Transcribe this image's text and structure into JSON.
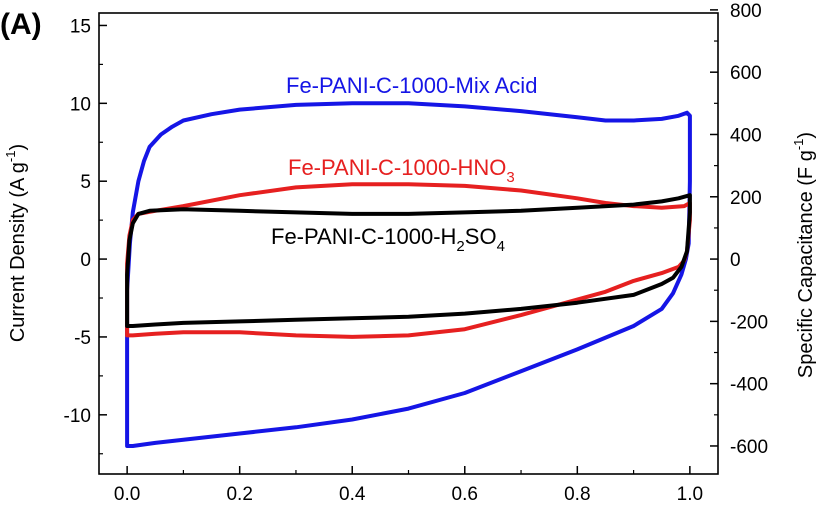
{
  "chart_data": {
    "type": "line",
    "panel_label": "(A)",
    "ylabel_left": "Current Density (A g",
    "ylabel_left_sup": "-1",
    "ylabel_left_close": ")",
    "ylabel_right": "Specific Capacitance (F g",
    "ylabel_right_sup": "-1",
    "ylabel_right_close": ")",
    "xlabel": "",
    "xlim": [
      -0.05,
      1.05
    ],
    "ylim": [
      -13.8,
      15.8
    ],
    "ylim_right": [
      -690,
      790
    ],
    "x_ticks": [
      "0.0",
      "0.2",
      "0.4",
      "0.6",
      "0.8",
      "1.0"
    ],
    "x_tick_values": [
      0.0,
      0.2,
      0.4,
      0.6,
      0.8,
      1.0
    ],
    "y_ticks": [
      "-10",
      "-5",
      "0",
      "5",
      "10",
      "15"
    ],
    "y_tick_values": [
      -10,
      -5,
      0,
      5,
      10,
      15
    ],
    "y2_ticks": [
      "-600",
      "-400",
      "-200",
      "0",
      "200",
      "400",
      "600",
      "800"
    ],
    "y2_tick_values": [
      -600,
      -400,
      -200,
      0,
      200,
      400,
      600,
      800
    ],
    "series": [
      {
        "name": "Fe-PANI-C-1000-Mix Acid",
        "label_parts": {
          "main": "Fe-PANI-C-1000-Mix Acid"
        },
        "color": "#1515e6",
        "points": [
          [
            0.0,
            -12.0
          ],
          [
            0.0,
            -2.0
          ],
          [
            0.005,
            1.0
          ],
          [
            0.01,
            3.0
          ],
          [
            0.02,
            5.0
          ],
          [
            0.03,
            6.3
          ],
          [
            0.04,
            7.2
          ],
          [
            0.06,
            8.0
          ],
          [
            0.08,
            8.5
          ],
          [
            0.1,
            8.9
          ],
          [
            0.15,
            9.3
          ],
          [
            0.2,
            9.6
          ],
          [
            0.3,
            9.9
          ],
          [
            0.4,
            10.0
          ],
          [
            0.5,
            10.0
          ],
          [
            0.6,
            9.8
          ],
          [
            0.7,
            9.5
          ],
          [
            0.8,
            9.1
          ],
          [
            0.85,
            8.9
          ],
          [
            0.9,
            8.9
          ],
          [
            0.95,
            9.0
          ],
          [
            0.98,
            9.2
          ],
          [
            0.995,
            9.4
          ],
          [
            1.0,
            9.2
          ],
          [
            1.0,
            5.0
          ],
          [
            0.998,
            1.0
          ],
          [
            0.993,
            0.0
          ],
          [
            0.985,
            -1.0
          ],
          [
            0.97,
            -2.2
          ],
          [
            0.95,
            -3.2
          ],
          [
            0.9,
            -4.3
          ],
          [
            0.8,
            -5.8
          ],
          [
            0.7,
            -7.2
          ],
          [
            0.6,
            -8.6
          ],
          [
            0.5,
            -9.6
          ],
          [
            0.4,
            -10.3
          ],
          [
            0.3,
            -10.8
          ],
          [
            0.2,
            -11.2
          ],
          [
            0.1,
            -11.6
          ],
          [
            0.05,
            -11.8
          ],
          [
            0.01,
            -12.0
          ],
          [
            0.0,
            -12.0
          ]
        ]
      },
      {
        "name": "Fe-PANI-C-1000-HNO3",
        "label_parts": {
          "main": "Fe-PANI-C-1000-HNO",
          "sub": "3"
        },
        "color": "#e62020",
        "points": [
          [
            0.0,
            -4.9
          ],
          [
            0.0,
            -0.3
          ],
          [
            0.004,
            1.5
          ],
          [
            0.01,
            2.5
          ],
          [
            0.02,
            2.9
          ],
          [
            0.05,
            3.1
          ],
          [
            0.1,
            3.4
          ],
          [
            0.2,
            4.1
          ],
          [
            0.3,
            4.6
          ],
          [
            0.4,
            4.8
          ],
          [
            0.5,
            4.8
          ],
          [
            0.6,
            4.7
          ],
          [
            0.7,
            4.4
          ],
          [
            0.8,
            3.9
          ],
          [
            0.85,
            3.6
          ],
          [
            0.9,
            3.4
          ],
          [
            0.95,
            3.3
          ],
          [
            0.99,
            3.4
          ],
          [
            1.0,
            3.6
          ],
          [
            1.0,
            2.5
          ],
          [
            0.995,
            0.5
          ],
          [
            0.99,
            -0.1
          ],
          [
            0.98,
            -0.5
          ],
          [
            0.95,
            -0.9
          ],
          [
            0.9,
            -1.4
          ],
          [
            0.85,
            -2.1
          ],
          [
            0.8,
            -2.6
          ],
          [
            0.7,
            -3.6
          ],
          [
            0.6,
            -4.5
          ],
          [
            0.5,
            -4.9
          ],
          [
            0.4,
            -5.0
          ],
          [
            0.3,
            -4.9
          ],
          [
            0.2,
            -4.7
          ],
          [
            0.1,
            -4.7
          ],
          [
            0.05,
            -4.8
          ],
          [
            0.01,
            -4.9
          ],
          [
            0.0,
            -4.9
          ]
        ]
      },
      {
        "name": "Fe-PANI-C-1000-H2SO4",
        "label_parts": {
          "main": "Fe-PANI-C-1000-H",
          "sub": "2",
          "mid": "SO",
          "sub2": "4"
        },
        "color": "#000000",
        "points": [
          [
            0.0,
            -4.3
          ],
          [
            0.0,
            -1.0
          ],
          [
            0.004,
            1.2
          ],
          [
            0.01,
            2.3
          ],
          [
            0.02,
            2.9
          ],
          [
            0.04,
            3.1
          ],
          [
            0.1,
            3.2
          ],
          [
            0.2,
            3.1
          ],
          [
            0.3,
            3.0
          ],
          [
            0.4,
            2.9
          ],
          [
            0.5,
            2.9
          ],
          [
            0.6,
            3.0
          ],
          [
            0.7,
            3.1
          ],
          [
            0.8,
            3.3
          ],
          [
            0.9,
            3.5
          ],
          [
            0.95,
            3.7
          ],
          [
            0.98,
            3.9
          ],
          [
            1.0,
            4.1
          ],
          [
            1.0,
            3.0
          ],
          [
            0.995,
            0.5
          ],
          [
            0.985,
            -0.5
          ],
          [
            0.97,
            -1.2
          ],
          [
            0.95,
            -1.6
          ],
          [
            0.9,
            -2.3
          ],
          [
            0.8,
            -2.8
          ],
          [
            0.7,
            -3.2
          ],
          [
            0.6,
            -3.5
          ],
          [
            0.5,
            -3.7
          ],
          [
            0.4,
            -3.8
          ],
          [
            0.3,
            -3.9
          ],
          [
            0.2,
            -4.0
          ],
          [
            0.1,
            -4.1
          ],
          [
            0.05,
            -4.2
          ],
          [
            0.01,
            -4.3
          ],
          [
            0.0,
            -4.3
          ]
        ]
      }
    ]
  }
}
